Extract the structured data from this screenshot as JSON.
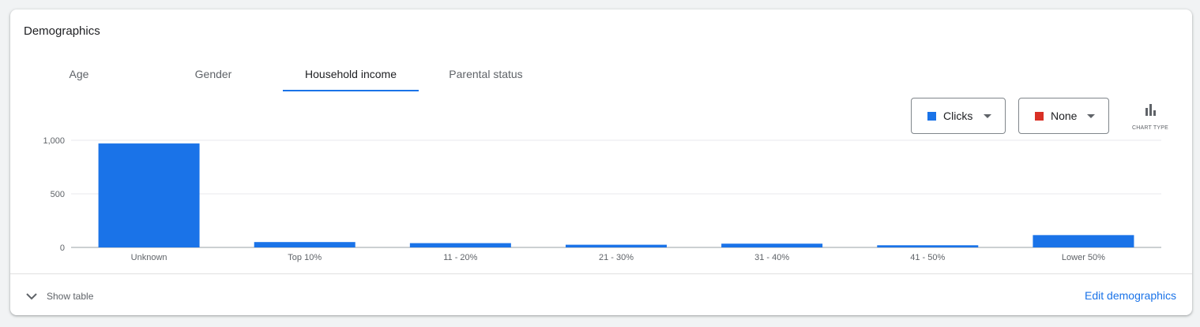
{
  "card": {
    "title": "Demographics"
  },
  "tabs": [
    {
      "label": "Age"
    },
    {
      "label": "Gender"
    },
    {
      "label": "Household income",
      "active": true
    },
    {
      "label": "Parental status"
    }
  ],
  "controls": {
    "metric1": {
      "label": "Clicks",
      "color": "#1a73e8"
    },
    "metric2": {
      "label": "None",
      "color": "#d93025"
    },
    "chart_type": {
      "label": "CHART TYPE",
      "icon": "bar-chart-icon"
    }
  },
  "chart_data": {
    "type": "bar",
    "categories": [
      "Unknown",
      "Top 10%",
      "11 - 20%",
      "21 - 30%",
      "31 - 40%",
      "41 - 50%",
      "Lower 50%"
    ],
    "series": [
      {
        "values": [
          970,
          50,
          40,
          25,
          35,
          20,
          115
        ],
        "color": "#1a73e8"
      }
    ],
    "yticks": [
      0,
      500,
      1000
    ],
    "ytick_labels": [
      "0",
      "500",
      "1,000"
    ],
    "ylim": [
      0,
      1000
    ],
    "grid": true
  },
  "footer": {
    "show_table": "Show table",
    "show_table_icon": "chevron-down-icon",
    "edit_link": "Edit demographics"
  }
}
